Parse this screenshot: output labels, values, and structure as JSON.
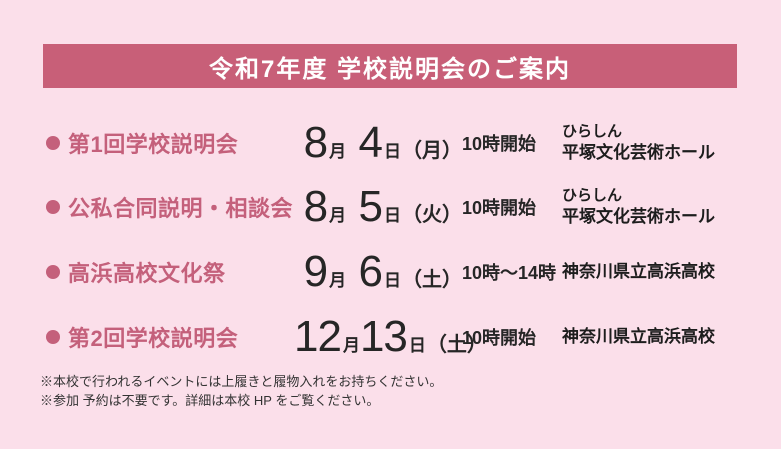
{
  "page": {
    "background_color": "#fbdfea"
  },
  "banner": {
    "title": "令和7年度 学校説明会のご案内",
    "background_color": "#c85f78",
    "text_color": "#ffffff"
  },
  "accent_color": "#c4607b",
  "text_color": "#262626",
  "labels": {
    "month_unit": "月",
    "day_unit": "日"
  },
  "icons": {
    "event_bullet": "filled-circle"
  },
  "events": [
    {
      "name": "第1回学校説明会",
      "month": "8",
      "day": "4",
      "weekday": "（月）",
      "time": "10時開始",
      "venue_small": "ひらしん",
      "venue_main": "平塚文化芸術ホール"
    },
    {
      "name": "公私合同説明・相談会",
      "month": "8",
      "day": "5",
      "weekday": "（火）",
      "time": "10時開始",
      "venue_small": "ひらしん",
      "venue_main": "平塚文化芸術ホール"
    },
    {
      "name": "高浜高校文化祭",
      "month": "9",
      "day": "6",
      "weekday": "（土）",
      "time": "10時〜14時",
      "venue_main": "神奈川県立高浜高校"
    },
    {
      "name": "第2回学校説明会",
      "month": "12",
      "day": "13",
      "weekday": "（土）",
      "time": "10時開始",
      "venue_main": "神奈川県立高浜高校"
    }
  ],
  "notes": [
    "※本校で行われるイベントには上履きと履物入れをお持ちください。",
    "※参加 予約は不要です。詳細は本校 HP をご覧ください。"
  ]
}
